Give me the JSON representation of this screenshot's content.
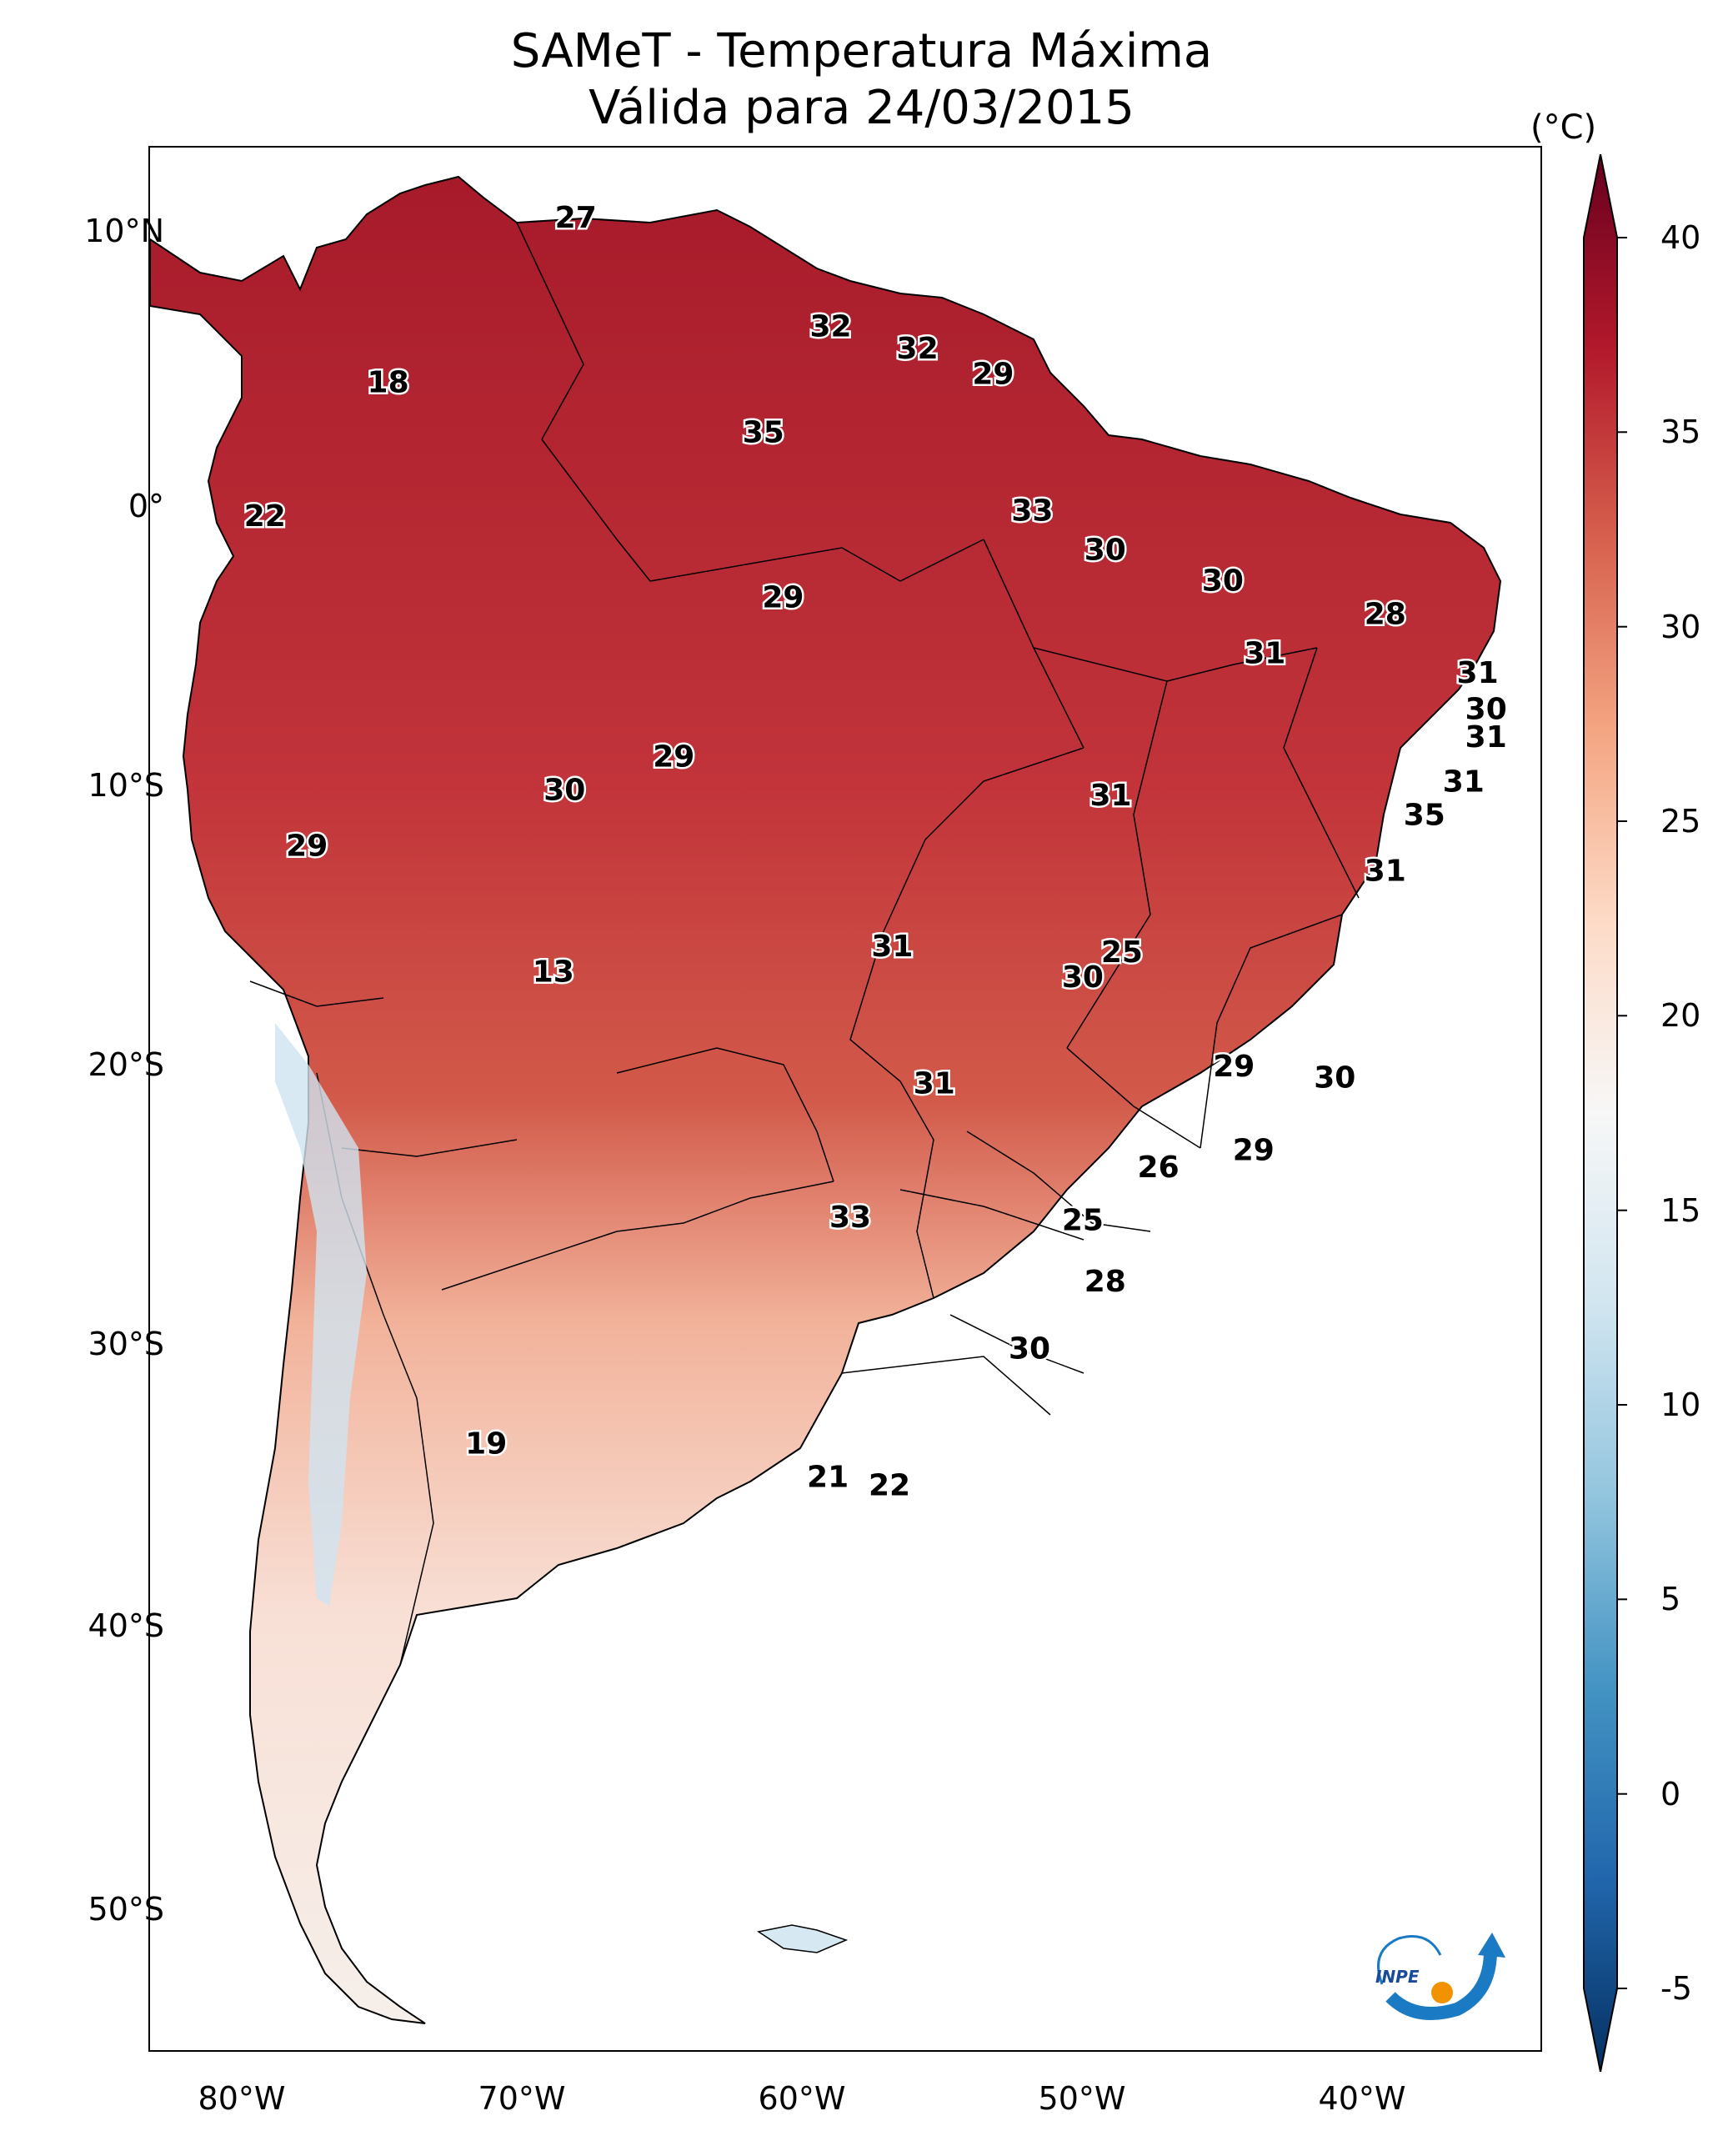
{
  "title": {
    "line1": "SAMeT - Temperatura Máxima",
    "line2": "Válida para 24/03/2015"
  },
  "latitude_ticks": [
    "10°N",
    "0°",
    "10°S",
    "20°S",
    "30°S",
    "40°S",
    "50°S"
  ],
  "longitude_ticks": [
    "80°W",
    "70°W",
    "60°W",
    "50°W",
    "40°W"
  ],
  "colorbar": {
    "unit": "(°C)",
    "min": -5,
    "max": 40,
    "labels": [
      "40",
      "35",
      "30",
      "25",
      "20",
      "15",
      "10",
      "5",
      "0",
      "-5"
    ],
    "colors": [
      "#053061",
      "#2166ac",
      "#4393c3",
      "#92c5de",
      "#d1e5f0",
      "#f7f7f7",
      "#fddbc7",
      "#f4a582",
      "#d6604d",
      "#b2182b",
      "#67001f"
    ]
  },
  "city_labels": [
    {
      "value": "27",
      "lon": -67.4,
      "lat": 10.5
    },
    {
      "value": "32",
      "lon": -58.3,
      "lat": 6.6
    },
    {
      "value": "32",
      "lon": -55.2,
      "lat": 5.8
    },
    {
      "value": "29",
      "lon": -52.5,
      "lat": 4.9
    },
    {
      "value": "18",
      "lon": -74.1,
      "lat": 4.6
    },
    {
      "value": "35",
      "lon": -60.7,
      "lat": 2.8
    },
    {
      "value": "22",
      "lon": -78.5,
      "lat": -0.2
    },
    {
      "value": "33",
      "lon": -51.1,
      "lat": 0.0
    },
    {
      "value": "30",
      "lon": -48.5,
      "lat": -1.4
    },
    {
      "value": "30",
      "lon": -44.3,
      "lat": -2.5
    },
    {
      "value": "28",
      "lon": -38.5,
      "lat": -3.7
    },
    {
      "value": "29",
      "lon": -60.0,
      "lat": -3.1
    },
    {
      "value": "31",
      "lon": -42.8,
      "lat": -5.1
    },
    {
      "value": "31",
      "lon": -35.2,
      "lat": -5.8
    },
    {
      "value": "30",
      "lon": -34.9,
      "lat": -7.1
    },
    {
      "value": "31",
      "lon": -34.9,
      "lat": -8.1
    },
    {
      "value": "29",
      "lon": -63.9,
      "lat": -8.8
    },
    {
      "value": "30",
      "lon": -67.8,
      "lat": -10.0
    },
    {
      "value": "31",
      "lon": -48.3,
      "lat": -10.2
    },
    {
      "value": "31",
      "lon": -35.7,
      "lat": -9.7
    },
    {
      "value": "35",
      "lon": -37.1,
      "lat": -10.9
    },
    {
      "value": "29",
      "lon": -77.0,
      "lat": -12.0
    },
    {
      "value": "31",
      "lon": -38.5,
      "lat": -12.9
    },
    {
      "value": "13",
      "lon": -68.2,
      "lat": -16.5
    },
    {
      "value": "31",
      "lon": -56.1,
      "lat": -15.6
    },
    {
      "value": "25",
      "lon": -47.9,
      "lat": -15.8
    },
    {
      "value": "30",
      "lon": -49.3,
      "lat": -16.7
    },
    {
      "value": "29",
      "lon": -43.9,
      "lat": -19.9
    },
    {
      "value": "30",
      "lon": -40.3,
      "lat": -20.3
    },
    {
      "value": "31",
      "lon": -54.6,
      "lat": -20.5
    },
    {
      "value": "26",
      "lon": -46.6,
      "lat": -23.5
    },
    {
      "value": "29",
      "lon": -43.2,
      "lat": -22.9
    },
    {
      "value": "33",
      "lon": -57.6,
      "lat": -25.3
    },
    {
      "value": "25",
      "lon": -49.3,
      "lat": -25.4
    },
    {
      "value": "28",
      "lon": -48.5,
      "lat": -27.6
    },
    {
      "value": "30",
      "lon": -51.2,
      "lat": -30.0
    },
    {
      "value": "19",
      "lon": -70.6,
      "lat": -33.4
    },
    {
      "value": "21",
      "lon": -58.4,
      "lat": -34.6
    },
    {
      "value": "22",
      "lon": -56.2,
      "lat": -34.9
    }
  ],
  "logo": {
    "text": "INPE"
  }
}
